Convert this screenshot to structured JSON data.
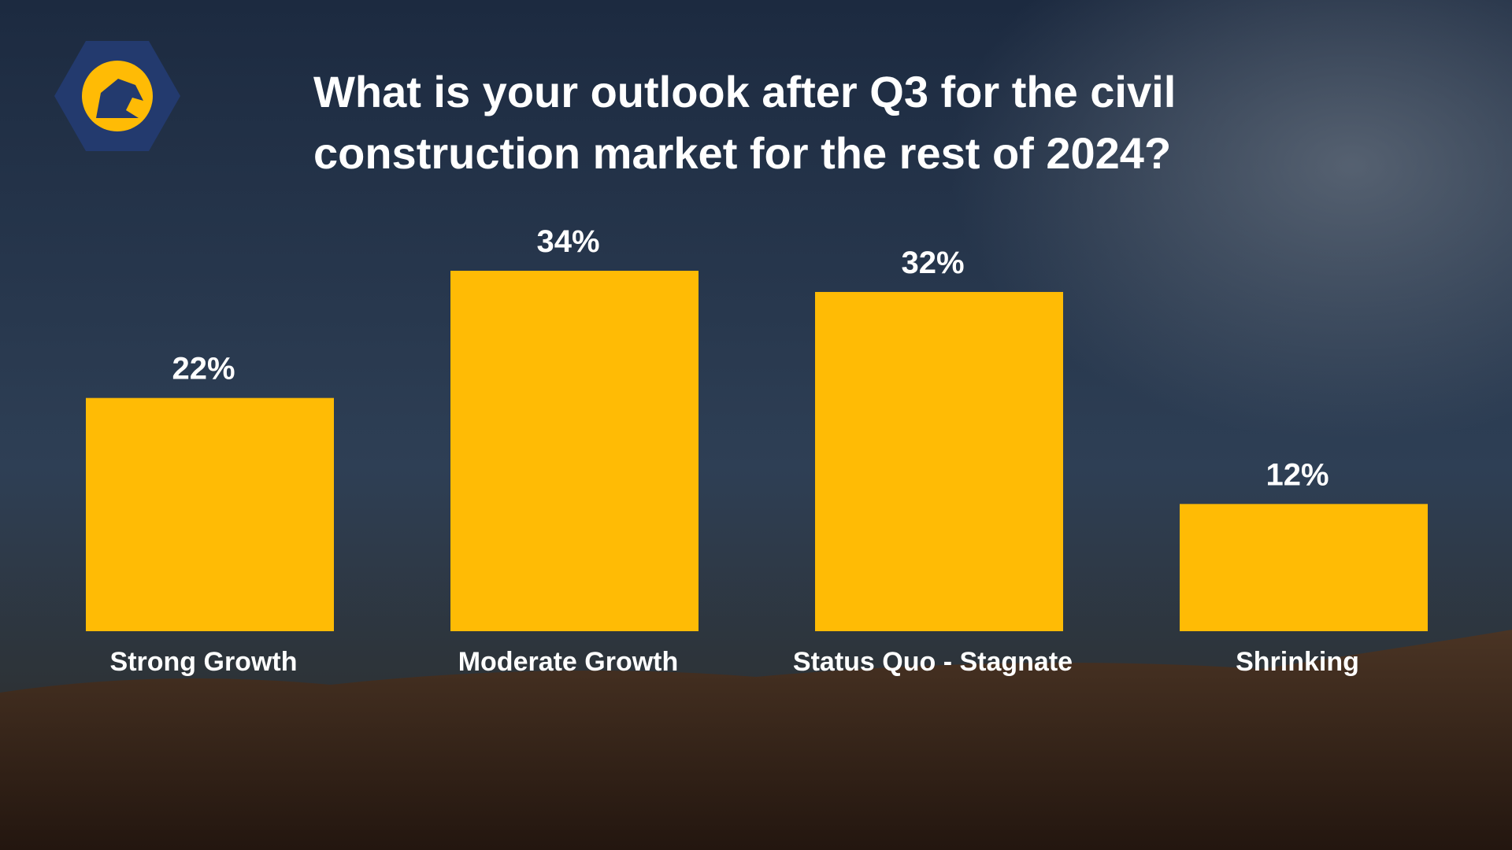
{
  "chart_data": {
    "type": "bar",
    "title": "What is your outlook after Q3 for the civil construction market for the rest of 2024?",
    "categories": [
      "Strong Growth",
      "Moderate Growth",
      "Status Quo - Stagnate",
      "Shrinking"
    ],
    "values": [
      22,
      34,
      32,
      12
    ],
    "value_labels": [
      "22%",
      "34%",
      "32%",
      "12%"
    ],
    "color": "#ffbb05"
  }
}
